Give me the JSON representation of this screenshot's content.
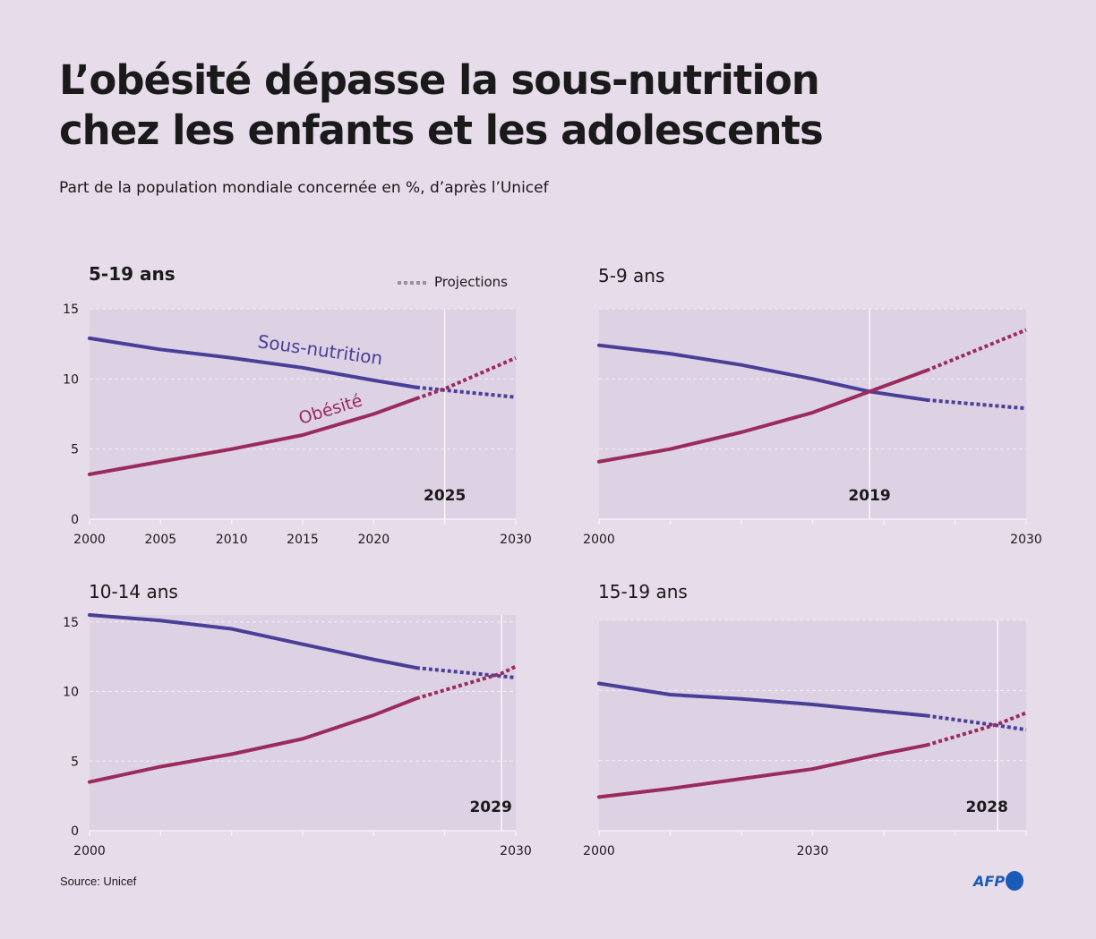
{
  "title_line1": "L’obésité dépasse la sous-nutrition",
  "title_line2": "chez les enfants et les adolescents",
  "subtitle": "Part de la population mondiale concernée en %, d’après l’Unicef",
  "source": "Source: Unicef",
  "logo": "AFP",
  "legend": {
    "projections": "Projections"
  },
  "colors": {
    "background": "#e6dcea",
    "plot": "#ddd1e4",
    "sous_nutrition": "#4a3f98",
    "obesite": "#9a2b5c",
    "projection_legend": "#9a939e"
  },
  "chart_data": [
    {
      "type": "line",
      "title": "5-19 ans",
      "xlim": [
        2000,
        2030
      ],
      "ylim": [
        0,
        15
      ],
      "yticks": [
        "15",
        "10",
        "5",
        "0"
      ],
      "xtick_labels": [
        "2000",
        "2005",
        "2010",
        "2015",
        "2020",
        "2030"
      ],
      "marker_year": "2025",
      "projection_from": 2023,
      "series": [
        {
          "name": "Sous-nutrition",
          "x": [
            2000,
            2005,
            2010,
            2015,
            2020,
            2023,
            2025,
            2030
          ],
          "y": [
            12.9,
            12.1,
            11.5,
            10.8,
            9.9,
            9.4,
            9.2,
            8.7
          ]
        },
        {
          "name": "Obésité",
          "x": [
            2000,
            2005,
            2010,
            2015,
            2020,
            2023,
            2025,
            2030
          ],
          "y": [
            3.2,
            4.1,
            5.0,
            6.0,
            7.5,
            8.6,
            9.3,
            11.5
          ]
        }
      ]
    },
    {
      "type": "line",
      "title": "5-9 ans",
      "xlim": [
        2000,
        2030
      ],
      "ylim": [
        0,
        15
      ],
      "xtick_labels": [
        "2000",
        "2030"
      ],
      "marker_year": "2019",
      "projection_from": 2023,
      "series": [
        {
          "x": [
            2000,
            2005,
            2010,
            2015,
            2019,
            2023,
            2030
          ],
          "y": [
            12.4,
            11.8,
            11.0,
            10.0,
            9.1,
            8.5,
            7.9
          ]
        },
        {
          "x": [
            2000,
            2005,
            2010,
            2015,
            2019,
            2023,
            2030
          ],
          "y": [
            4.1,
            5.0,
            6.2,
            7.6,
            9.1,
            10.6,
            13.5
          ]
        }
      ]
    },
    {
      "type": "line",
      "title": "10-14 ans",
      "xlim": [
        2000,
        2030
      ],
      "ylim": [
        0,
        15.5
      ],
      "yticks": [
        "15",
        "10",
        "5",
        "0"
      ],
      "xtick_labels": [
        "2000",
        "2030"
      ],
      "marker_year": "2029",
      "projection_from": 2023,
      "series": [
        {
          "x": [
            2000,
            2005,
            2010,
            2015,
            2020,
            2023,
            2029,
            2030
          ],
          "y": [
            15.5,
            15.1,
            14.5,
            13.4,
            12.3,
            11.7,
            11.1,
            11.0
          ]
        },
        {
          "x": [
            2000,
            2005,
            2010,
            2015,
            2020,
            2023,
            2029,
            2030
          ],
          "y": [
            3.5,
            4.6,
            5.5,
            6.6,
            8.3,
            9.5,
            11.3,
            11.8
          ]
        }
      ]
    },
    {
      "type": "line",
      "title": "15-19 ans",
      "xlim": [
        2000,
        2030
      ],
      "ylim": [
        0,
        15
      ],
      "xtick_labels": [
        "2000",
        "2030"
      ],
      "marker_year": "2028",
      "projection_from": 2023,
      "series": [
        {
          "x": [
            2000,
            2005,
            2010,
            2015,
            2020,
            2023,
            2028,
            2030
          ],
          "y": [
            10.5,
            9.7,
            9.4,
            9.0,
            8.5,
            8.2,
            7.5,
            7.2
          ]
        },
        {
          "x": [
            2000,
            2005,
            2010,
            2015,
            2020,
            2023,
            2028,
            2030
          ],
          "y": [
            2.4,
            3.0,
            3.7,
            4.4,
            5.5,
            6.1,
            7.6,
            8.4
          ]
        }
      ]
    }
  ]
}
